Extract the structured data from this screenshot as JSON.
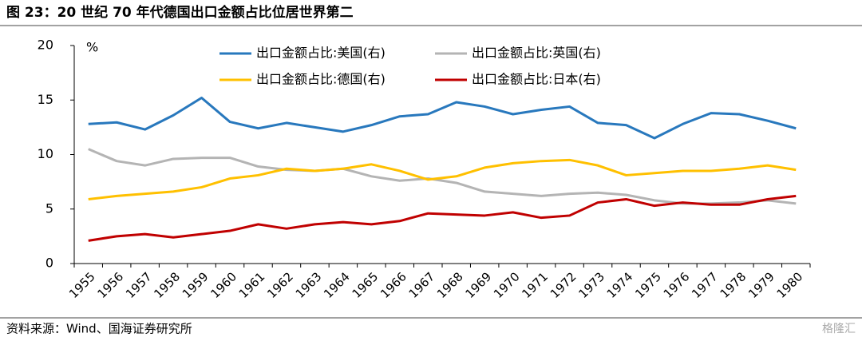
{
  "title": "图 23：20 世纪 70 年代德国出口金额占比位居世界第二",
  "source": "资料来源：Wind、国海证券研究所",
  "watermark": "格隆汇",
  "chart_data": {
    "type": "line",
    "y_unit": "%",
    "categories": [
      "1955",
      "1956",
      "1957",
      "1958",
      "1959",
      "1960",
      "1961",
      "1962",
      "1963",
      "1964",
      "1965",
      "1966",
      "1967",
      "1968",
      "1969",
      "1970",
      "1971",
      "1972",
      "1973",
      "1974",
      "1975",
      "1976",
      "1977",
      "1978",
      "1979",
      "1980"
    ],
    "series": [
      {
        "name": "出口金额占比:美国(右)",
        "color": "#2878bd",
        "values": [
          12.8,
          12.95,
          12.3,
          13.6,
          15.2,
          13.0,
          12.4,
          12.9,
          12.5,
          12.1,
          12.7,
          13.5,
          13.7,
          14.8,
          14.4,
          13.7,
          14.1,
          14.4,
          12.9,
          12.7,
          11.5,
          12.8,
          13.8,
          13.7,
          13.1,
          12.4
        ]
      },
      {
        "name": "出口金额占比:英国(右)",
        "color": "#b4b4b4",
        "values": [
          10.5,
          9.4,
          9.0,
          9.6,
          9.7,
          9.7,
          8.9,
          8.6,
          8.5,
          8.7,
          8.0,
          7.6,
          7.8,
          7.4,
          6.6,
          6.4,
          6.2,
          6.4,
          6.5,
          6.3,
          5.8,
          5.5,
          5.5,
          5.6,
          5.8,
          5.5
        ]
      },
      {
        "name": "出口金额占比:德国(右)",
        "color": "#ffc000",
        "values": [
          5.9,
          6.2,
          6.4,
          6.6,
          7.0,
          7.8,
          8.1,
          8.7,
          8.5,
          8.7,
          9.1,
          8.5,
          7.7,
          8.0,
          8.8,
          9.2,
          9.4,
          9.5,
          9.0,
          8.1,
          8.3,
          8.5,
          8.5,
          8.7,
          9.0,
          8.6
        ]
      },
      {
        "name": "出口金额占比:日本(右)",
        "color": "#c00000",
        "values": [
          2.1,
          2.5,
          2.7,
          2.4,
          2.7,
          3.0,
          3.6,
          3.2,
          3.6,
          3.8,
          3.6,
          3.9,
          4.6,
          4.5,
          4.4,
          4.7,
          4.2,
          4.4,
          5.6,
          5.9,
          5.3,
          5.6,
          5.4,
          5.4,
          5.9,
          6.2
        ]
      }
    ],
    "ylim": [
      0,
      20
    ],
    "yticks": [
      0,
      5,
      10,
      15,
      20
    ],
    "grid": false
  }
}
